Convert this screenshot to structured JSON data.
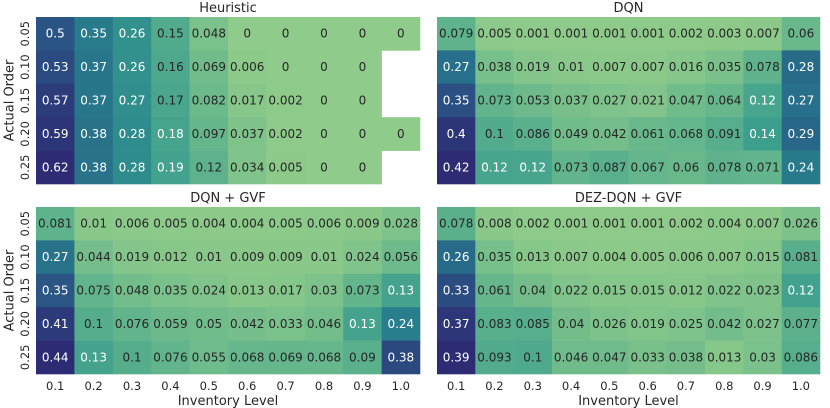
{
  "chart_data": [
    {
      "type": "heatmap",
      "title": "Heuristic",
      "ylabel": "Actual Order",
      "xlabel": "",
      "rows": [
        "0.05",
        "0.10",
        "0.15",
        "0.20",
        "0.25"
      ],
      "cols": [],
      "values": [
        [
          0.5,
          0.35,
          0.26,
          0.15,
          0.048,
          0,
          0,
          0,
          0,
          0
        ],
        [
          0.53,
          0.37,
          0.26,
          0.16,
          0.069,
          0.006,
          0,
          0,
          0,
          null
        ],
        [
          0.57,
          0.37,
          0.27,
          0.17,
          0.082,
          0.017,
          0.002,
          0,
          0,
          null
        ],
        [
          0.59,
          0.38,
          0.28,
          0.18,
          0.097,
          0.037,
          0.002,
          0,
          0,
          0
        ],
        [
          0.62,
          0.38,
          0.28,
          0.19,
          0.12,
          0.034,
          0.005,
          0,
          0,
          null
        ]
      ],
      "labels": [
        [
          "0.5",
          "0.35",
          "0.26",
          "0.15",
          "0.048",
          "0",
          "0",
          "0",
          "0",
          "0"
        ],
        [
          "0.53",
          "0.37",
          "0.26",
          "0.16",
          "0.069",
          "0.006",
          "0",
          "0",
          "0",
          ""
        ],
        [
          "0.57",
          "0.37",
          "0.27",
          "0.17",
          "0.082",
          "0.017",
          "0.002",
          "0",
          "0",
          ""
        ],
        [
          "0.59",
          "0.38",
          "0.28",
          "0.18",
          "0.097",
          "0.037",
          "0.002",
          "0",
          "0",
          "0"
        ],
        [
          "0.62",
          "0.38",
          "0.28",
          "0.19",
          "0.12",
          "0.034",
          "0.005",
          "0",
          "0",
          ""
        ]
      ],
      "vmin": 0,
      "vmax": 0.62
    },
    {
      "type": "heatmap",
      "title": "DQN",
      "ylabel": "",
      "xlabel": "",
      "rows": [],
      "cols": [],
      "values": [
        [
          0.079,
          0.005,
          0.001,
          0.001,
          0.001,
          0.001,
          0.002,
          0.003,
          0.007,
          0.06
        ],
        [
          0.27,
          0.038,
          0.019,
          0.01,
          0.007,
          0.007,
          0.016,
          0.035,
          0.078,
          0.28
        ],
        [
          0.35,
          0.073,
          0.053,
          0.037,
          0.027,
          0.021,
          0.047,
          0.064,
          0.12,
          0.27
        ],
        [
          0.4,
          0.1,
          0.086,
          0.049,
          0.042,
          0.061,
          0.068,
          0.091,
          0.14,
          0.29
        ],
        [
          0.42,
          0.12,
          0.12,
          0.073,
          0.087,
          0.067,
          0.06,
          0.078,
          0.071,
          0.24
        ]
      ],
      "labels": [
        [
          "0.079",
          "0.005",
          "0.001",
          "0.001",
          "0.001",
          "0.001",
          "0.002",
          "0.003",
          "0.007",
          "0.06"
        ],
        [
          "0.27",
          "0.038",
          "0.019",
          "0.01",
          "0.007",
          "0.007",
          "0.016",
          "0.035",
          "0.078",
          "0.28"
        ],
        [
          "0.35",
          "0.073",
          "0.053",
          "0.037",
          "0.027",
          "0.021",
          "0.047",
          "0.064",
          "0.12",
          "0.27"
        ],
        [
          "0.4",
          "0.1",
          "0.086",
          "0.049",
          "0.042",
          "0.061",
          "0.068",
          "0.091",
          "0.14",
          "0.29"
        ],
        [
          "0.42",
          "0.12",
          "0.12",
          "0.073",
          "0.087",
          "0.067",
          "0.06",
          "0.078",
          "0.071",
          "0.24"
        ]
      ],
      "vmin": 0,
      "vmax": 0.42
    },
    {
      "type": "heatmap",
      "title": "DQN + GVF",
      "ylabel": "Actual Order",
      "xlabel": "Inventory Level",
      "rows": [
        "0.05",
        "0.10",
        "0.15",
        "0.20",
        "0.25"
      ],
      "cols": [
        "0.1",
        "0.2",
        "0.3",
        "0.4",
        "0.5",
        "0.6",
        "0.7",
        "0.8",
        "0.9",
        "1.0"
      ],
      "values": [
        [
          0.081,
          0.01,
          0.006,
          0.005,
          0.004,
          0.004,
          0.005,
          0.006,
          0.009,
          0.028
        ],
        [
          0.27,
          0.044,
          0.019,
          0.012,
          0.01,
          0.009,
          0.009,
          0.01,
          0.024,
          0.056
        ],
        [
          0.35,
          0.075,
          0.048,
          0.035,
          0.024,
          0.013,
          0.017,
          0.03,
          0.073,
          0.13
        ],
        [
          0.41,
          0.1,
          0.076,
          0.059,
          0.05,
          0.042,
          0.033,
          0.046,
          0.13,
          0.24
        ],
        [
          0.44,
          0.13,
          0.1,
          0.076,
          0.055,
          0.068,
          0.069,
          0.068,
          0.09,
          0.38
        ]
      ],
      "labels": [
        [
          "0.081",
          "0.01",
          "0.006",
          "0.005",
          "0.004",
          "0.004",
          "0.005",
          "0.006",
          "0.009",
          "0.028"
        ],
        [
          "0.27",
          "0.044",
          "0.019",
          "0.012",
          "0.01",
          "0.009",
          "0.009",
          "0.01",
          "0.024",
          "0.056"
        ],
        [
          "0.35",
          "0.075",
          "0.048",
          "0.035",
          "0.024",
          "0.013",
          "0.017",
          "0.03",
          "0.073",
          "0.13"
        ],
        [
          "0.41",
          "0.1",
          "0.076",
          "0.059",
          "0.05",
          "0.042",
          "0.033",
          "0.046",
          "0.13",
          "0.24"
        ],
        [
          "0.44",
          "0.13",
          "0.1",
          "0.076",
          "0.055",
          "0.068",
          "0.069",
          "0.068",
          "0.09",
          "0.38"
        ]
      ],
      "vmin": 0,
      "vmax": 0.44
    },
    {
      "type": "heatmap",
      "title": "DEZ-DQN + GVF",
      "ylabel": "",
      "xlabel": "Inventory Level",
      "rows": [],
      "cols": [
        "0.1",
        "0.2",
        "0.3",
        "0.4",
        "0.5",
        "0.6",
        "0.7",
        "0.8",
        "0.9",
        "1.0"
      ],
      "values": [
        [
          0.078,
          0.008,
          0.002,
          0.001,
          0.001,
          0.001,
          0.002,
          0.004,
          0.007,
          0.026
        ],
        [
          0.26,
          0.035,
          0.013,
          0.007,
          0.004,
          0.005,
          0.006,
          0.007,
          0.015,
          0.081
        ],
        [
          0.33,
          0.061,
          0.04,
          0.022,
          0.015,
          0.015,
          0.012,
          0.022,
          0.023,
          0.12
        ],
        [
          0.37,
          0.083,
          0.085,
          0.04,
          0.026,
          0.019,
          0.025,
          0.042,
          0.027,
          0.077
        ],
        [
          0.39,
          0.093,
          0.1,
          0.046,
          0.047,
          0.033,
          0.038,
          0.013,
          0.03,
          0.086
        ]
      ],
      "labels": [
        [
          "0.078",
          "0.008",
          "0.002",
          "0.001",
          "0.001",
          "0.001",
          "0.002",
          "0.004",
          "0.007",
          "0.026"
        ],
        [
          "0.26",
          "0.035",
          "0.013",
          "0.007",
          "0.004",
          "0.005",
          "0.006",
          "0.007",
          "0.015",
          "0.081"
        ],
        [
          "0.33",
          "0.061",
          "0.04",
          "0.022",
          "0.015",
          "0.015",
          "0.012",
          "0.022",
          "0.023",
          "0.12"
        ],
        [
          "0.37",
          "0.083",
          "0.085",
          "0.04",
          "0.026",
          "0.019",
          "0.025",
          "0.042",
          "0.027",
          "0.077"
        ],
        [
          "0.39",
          "0.093",
          "0.1",
          "0.046",
          "0.047",
          "0.033",
          "0.038",
          "0.013",
          "0.03",
          "0.086"
        ]
      ],
      "vmin": 0,
      "vmax": 0.39
    }
  ],
  "colormap": {
    "name": "crest",
    "stops": [
      "#8fcb8a",
      "#63b58c",
      "#3c9e8d",
      "#29858d",
      "#276b89",
      "#2b4f82",
      "#2c2b73"
    ]
  }
}
